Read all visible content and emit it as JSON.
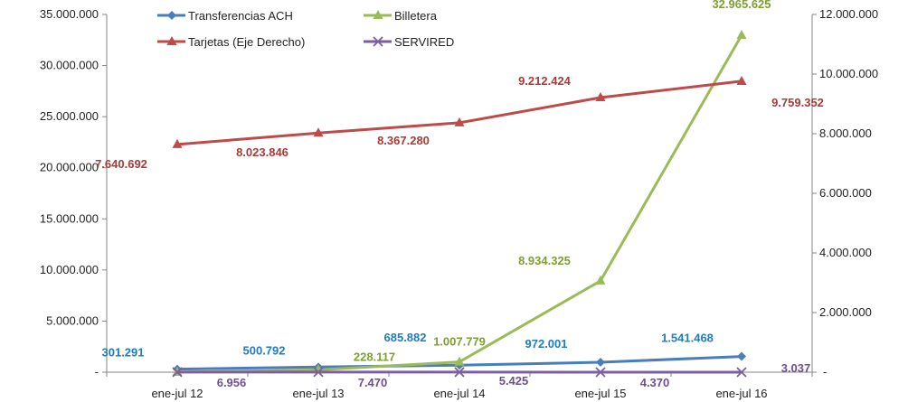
{
  "chart_data": {
    "type": "line",
    "title": "",
    "categories": [
      "ene-jul 12",
      "ene-jul 13",
      "ene-jul 14",
      "ene-jul 15",
      "ene-jul 16"
    ],
    "y_left": {
      "min": 0,
      "max": 35000000,
      "step": 5000000,
      "tick_labels": [
        "-",
        "5.000.000",
        "10.000.000",
        "15.000.000",
        "20.000.000",
        "25.000.000",
        "30.000.000",
        "35.000.000"
      ]
    },
    "y_right": {
      "min": 0,
      "max": 12000000,
      "step": 2000000,
      "tick_labels": [
        "-",
        "2.000.000",
        "4.000.000",
        "6.000.000",
        "8.000.000",
        "10.000.000",
        "12.000.000"
      ]
    },
    "grid": false,
    "legend_position": "top",
    "series": [
      {
        "name": "Transferencias ACH",
        "axis": "left",
        "color": "#4a7ebb",
        "label_color": "#1f7bc4",
        "marker": "diamond",
        "values": [
          301291,
          500792,
          685882,
          972001,
          1541468
        ],
        "labels": [
          "301.291",
          "500.792",
          "685.882",
          "972.001",
          "1.541.468"
        ]
      },
      {
        "name": "Billetera",
        "axis": "left",
        "color": "#9bbb59",
        "label_color": "#7f9e35",
        "marker": "triangle",
        "values": [
          0,
          228117,
          1007779,
          8934325,
          32965625
        ],
        "labels": [
          "",
          "228.117",
          "1.007.779",
          "8.934.325",
          "32.965.625"
        ]
      },
      {
        "name": "Tarjetas (Eje Derecho)",
        "axis": "right",
        "color": "#be4b48",
        "label_color": "#a83b36",
        "marker": "triangle",
        "values": [
          7640692,
          8023846,
          8367280,
          9212424,
          9759352
        ],
        "labels": [
          "7.640.692",
          "8.023.846",
          "8.367.280",
          "9.212.424",
          "9.759.352"
        ]
      },
      {
        "name": "SERVIRED",
        "axis": "left",
        "color": "#7d5fa0",
        "label_color": "#6f4f94",
        "marker": "x",
        "values": [
          6956,
          7470,
          5425,
          4370,
          3037
        ],
        "labels": [
          "6.956",
          "7.470",
          "5.425",
          "4.370",
          "3.037"
        ]
      }
    ]
  }
}
